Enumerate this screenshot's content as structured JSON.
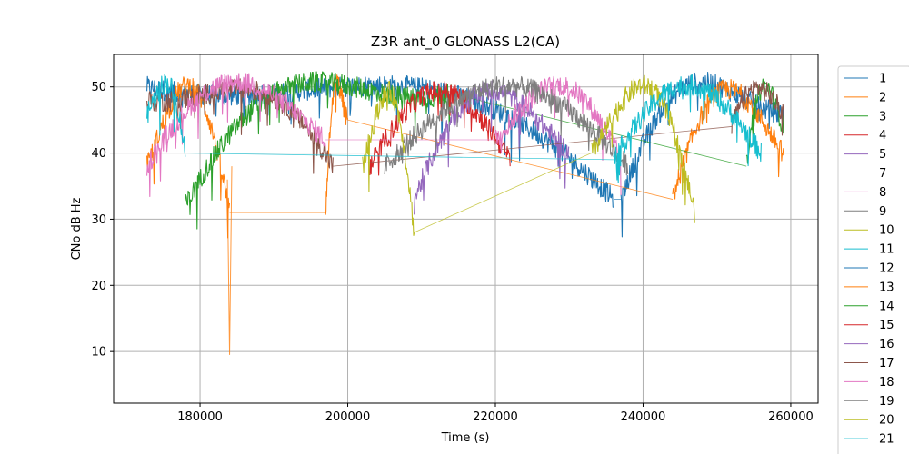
{
  "chart_data": {
    "type": "line",
    "title": "Z3R ant_0 GLONASS L2(CA)",
    "xlabel": "Time (s)",
    "ylabel": "CNo dB Hz",
    "xlim": [
      168300,
      263700
    ],
    "ylim": [
      2.2,
      54.9
    ],
    "xticks": [
      180000,
      200000,
      220000,
      240000,
      260000
    ],
    "xtick_labels": [
      "180000",
      "200000",
      "220000",
      "240000",
      "260000"
    ],
    "yticks": [
      10,
      20,
      30,
      40,
      50
    ],
    "ytick_labels": [
      "10",
      "20",
      "30",
      "40",
      "50"
    ],
    "grid": true,
    "legend_placement": "outside-right",
    "series": [
      {
        "name": "1",
        "color": "#1f77b4",
        "arcs": [
          [
            172800,
            50,
            236000,
            33
          ],
          [
            237000,
            33,
            259000,
            46
          ]
        ],
        "visible_peaks": [
          [
            173000,
            50.5
          ],
          [
            250000,
            50
          ]
        ]
      },
      {
        "name": "2",
        "color": "#ff7f0e",
        "arcs": [
          [
            172800,
            38,
            184000,
            31
          ],
          [
            197000,
            31,
            200000,
            45
          ],
          [
            244000,
            33,
            259000,
            40
          ]
        ],
        "min_point": [
          184000,
          9.5
        ]
      },
      {
        "name": "3",
        "color": "#2ca02c",
        "arcs": [
          [
            178000,
            32,
            214000,
            49
          ],
          [
            254000,
            38,
            259000,
            44
          ]
        ]
      },
      {
        "name": "4",
        "color": "#d62728",
        "arcs": [
          [
            203000,
            38,
            222000,
            39
          ]
        ]
      },
      {
        "name": "5",
        "color": "#9467bd",
        "arcs": [
          [
            209000,
            33,
            230000,
            40
          ]
        ]
      },
      {
        "name": "7",
        "color": "#8c564b",
        "arcs": [
          [
            172800,
            48,
            198000,
            38
          ],
          [
            252000,
            44,
            259000,
            46
          ]
        ]
      },
      {
        "name": "8",
        "color": "#e377c2",
        "arcs": [
          [
            172800,
            38,
            197000,
            42
          ],
          [
            220000,
            42,
            237000,
            39
          ]
        ]
      },
      {
        "name": "9",
        "color": "#7f7f7f",
        "arcs": [
          [
            205000,
            38,
            238000,
            38
          ]
        ],
        "visible_peaks": [
          [
            231000,
            51.5
          ]
        ]
      },
      {
        "name": "10",
        "color": "#bcbd22",
        "arcs": [
          [
            202000,
            38,
            209000,
            28
          ],
          [
            233000,
            40,
            247000,
            31
          ]
        ]
      },
      {
        "name": "11",
        "color": "#17becf",
        "arcs": [
          [
            172800,
            46,
            178000,
            40
          ],
          [
            236000,
            39,
            256000,
            40
          ]
        ],
        "visible_peaks": [
          [
            245000,
            51
          ]
        ]
      },
      {
        "name": "12",
        "color": "#1f77b4",
        "arcs": []
      },
      {
        "name": "13",
        "color": "#ff7f0e",
        "arcs": []
      },
      {
        "name": "14",
        "color": "#2ca02c",
        "arcs": []
      },
      {
        "name": "15",
        "color": "#d62728",
        "arcs": []
      },
      {
        "name": "16",
        "color": "#9467bd",
        "arcs": []
      },
      {
        "name": "17",
        "color": "#8c564b",
        "arcs": []
      },
      {
        "name": "18",
        "color": "#e377c2",
        "arcs": []
      },
      {
        "name": "19",
        "color": "#7f7f7f",
        "arcs": []
      },
      {
        "name": "20",
        "color": "#bcbd22",
        "arcs": []
      },
      {
        "name": "21",
        "color": "#17becf",
        "arcs": []
      }
    ]
  }
}
